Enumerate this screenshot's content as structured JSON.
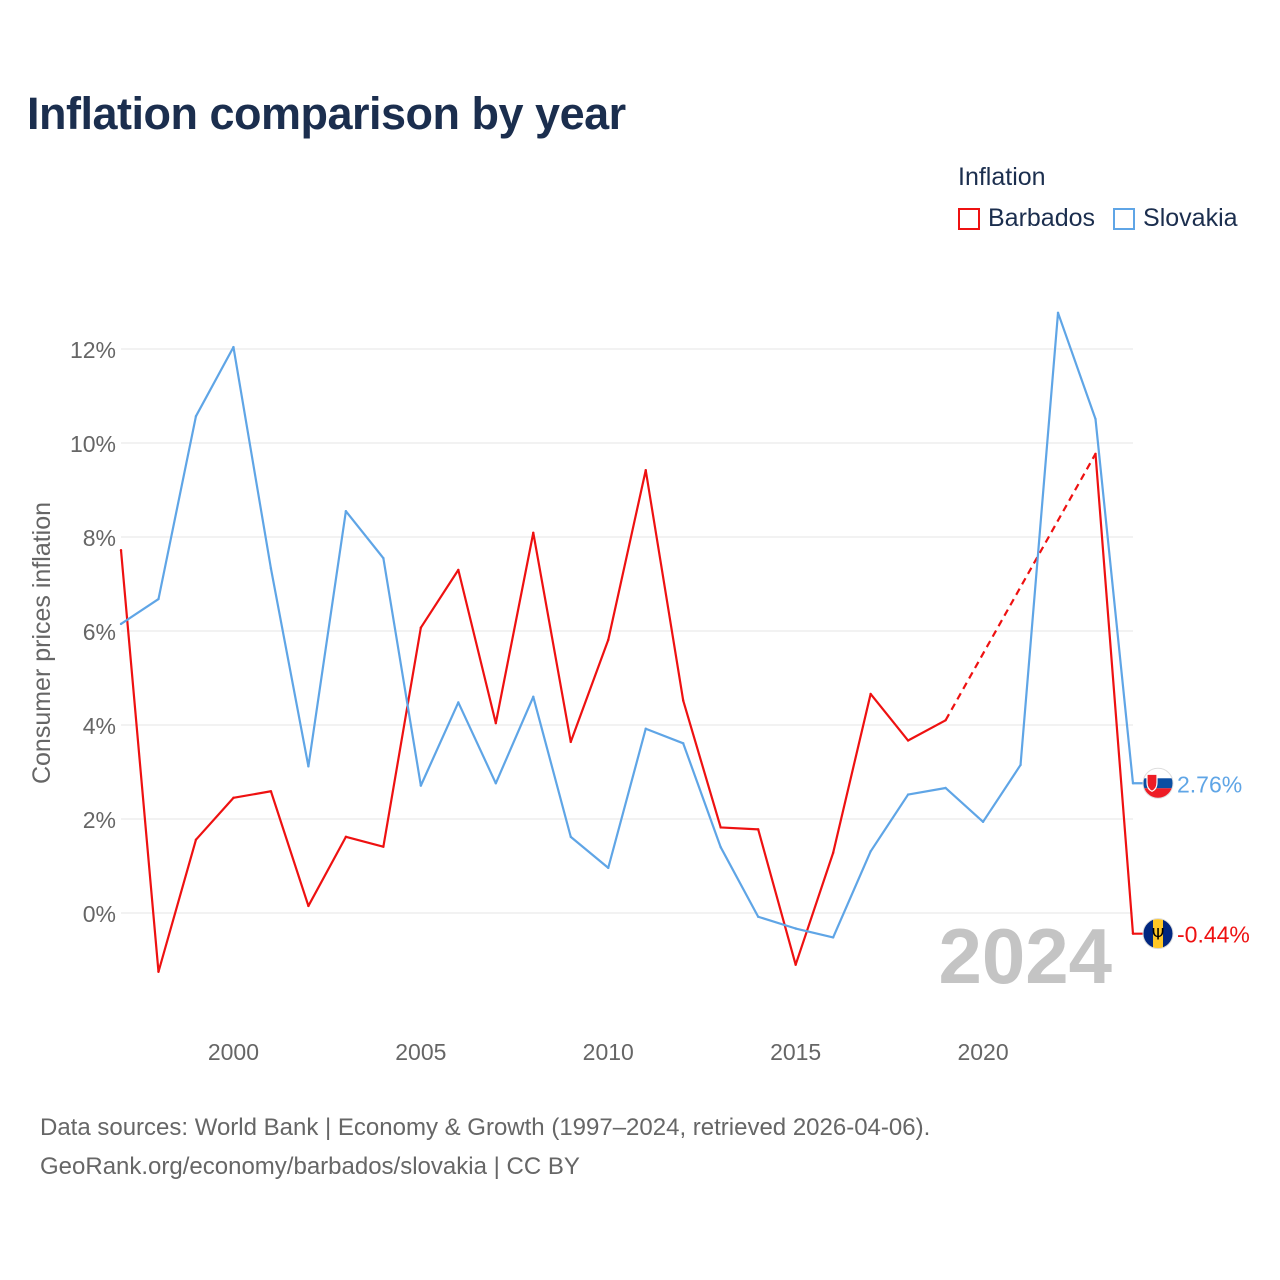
{
  "title": "Inflation comparison by year",
  "legend": {
    "title": "Inflation",
    "items": [
      {
        "label": "Barbados",
        "color": "#ee1111"
      },
      {
        "label": "Slovakia",
        "color": "#5fa5e6"
      }
    ]
  },
  "source": {
    "line1": "Data sources: World Bank | Economy & Growth (1997–2024, retrieved 2026-04-06).",
    "line2": "GeoRank.org/economy/barbados/slovakia | CC BY"
  },
  "chart_data": {
    "type": "line",
    "title": "Inflation comparison by year",
    "ylabel": "Consumer prices inflation",
    "xlabel": "",
    "x": [
      1997,
      1998,
      1999,
      2000,
      2001,
      2002,
      2003,
      2004,
      2005,
      2006,
      2007,
      2008,
      2009,
      2010,
      2011,
      2012,
      2013,
      2014,
      2015,
      2016,
      2017,
      2018,
      2019,
      2020,
      2021,
      2022,
      2023,
      2024
    ],
    "xlim": [
      1997,
      2024.8
    ],
    "ylim": [
      -2.4,
      13.5
    ],
    "yticks": [
      0,
      2,
      4,
      6,
      8,
      10,
      12
    ],
    "ytick_labels": [
      "0%",
      "2%",
      "4%",
      "6%",
      "8%",
      "10%",
      "12%"
    ],
    "xticks": [
      2000,
      2005,
      2010,
      2015,
      2020
    ],
    "xtick_labels": [
      "2000",
      "2005",
      "2010",
      "2015",
      "2020"
    ],
    "grid": true,
    "year_watermark": "2024",
    "series": [
      {
        "name": "Barbados",
        "color": "#ee1111",
        "values": [
          7.72,
          -1.25,
          1.56,
          2.45,
          2.59,
          0.15,
          1.62,
          1.41,
          6.07,
          7.3,
          4.04,
          8.09,
          3.64,
          5.81,
          9.42,
          4.52,
          1.82,
          1.78,
          -1.1,
          1.28,
          4.66,
          3.67,
          4.1,
          null,
          null,
          null,
          9.77,
          -0.44
        ],
        "end_label": "-0.44%"
      },
      {
        "name": "Slovakia",
        "color": "#5fa5e6",
        "values": [
          6.15,
          6.68,
          10.57,
          12.04,
          7.33,
          3.12,
          8.55,
          7.55,
          2.71,
          4.48,
          2.76,
          4.6,
          1.62,
          0.96,
          3.92,
          3.61,
          1.4,
          -0.08,
          -0.33,
          -0.52,
          1.31,
          2.52,
          2.66,
          1.94,
          3.15,
          12.77,
          10.51,
          2.76
        ],
        "end_label": "2.76%"
      }
    ]
  }
}
